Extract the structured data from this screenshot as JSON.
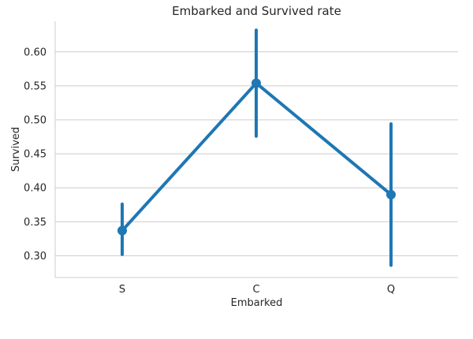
{
  "chart_data": {
    "type": "line",
    "title": "Embarked and Survived rate",
    "xlabel": "Embarked",
    "ylabel": "Survived",
    "categories": [
      "S",
      "C",
      "Q"
    ],
    "series": [
      {
        "values": [
          0.337,
          0.554,
          0.39
        ],
        "ci_lower": [
          0.302,
          0.476,
          0.286
        ],
        "ci_upper": [
          0.376,
          0.632,
          0.494
        ],
        "color": "#1f77b4"
      }
    ],
    "ylim": [
      0.268,
      0.645
    ],
    "yticks": [
      0.3,
      0.35,
      0.4,
      0.45,
      0.5,
      0.55,
      0.6
    ],
    "ytick_labels": [
      "0.30",
      "0.35",
      "0.40",
      "0.45",
      "0.50",
      "0.55",
      "0.60"
    ],
    "grid": "horizontal",
    "legend": "none",
    "grid_color": "#cccccc",
    "axis_color": "#cccccc"
  }
}
